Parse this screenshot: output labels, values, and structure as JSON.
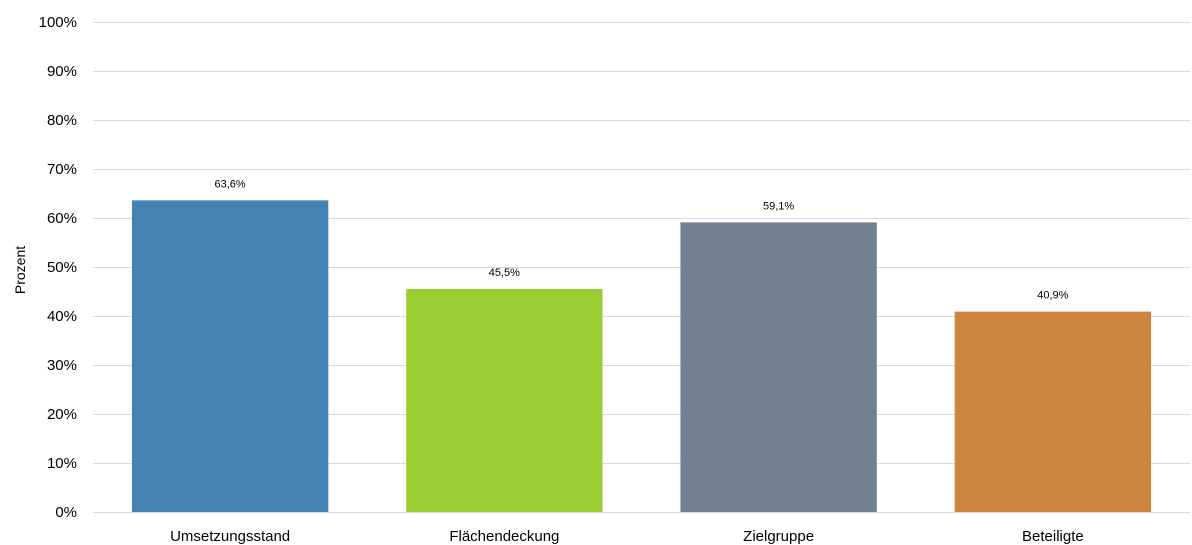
{
  "chart_data": {
    "type": "bar",
    "categories": [
      "Umsetzungsstand",
      "Flächendeckung",
      "Zielgruppe",
      "Beteiligte"
    ],
    "values": [
      63.6,
      45.5,
      59.1,
      40.9
    ],
    "data_labels": [
      "63,6%",
      "45,5%",
      "59,1%",
      "40,9%"
    ],
    "colors": [
      "#4682b4",
      "#9acd32",
      "#708090",
      "#cd853f"
    ],
    "title": "",
    "xlabel": "",
    "ylabel": "Prozent",
    "ylim": [
      0,
      100
    ],
    "yticks": [
      0,
      10,
      20,
      30,
      40,
      50,
      60,
      70,
      80,
      90,
      100
    ],
    "ytick_labels": [
      "0%",
      "10%",
      "20%",
      "30%",
      "40%",
      "50%",
      "60%",
      "70%",
      "80%",
      "90%",
      "100%"
    ],
    "grid": true,
    "legend": "none"
  }
}
